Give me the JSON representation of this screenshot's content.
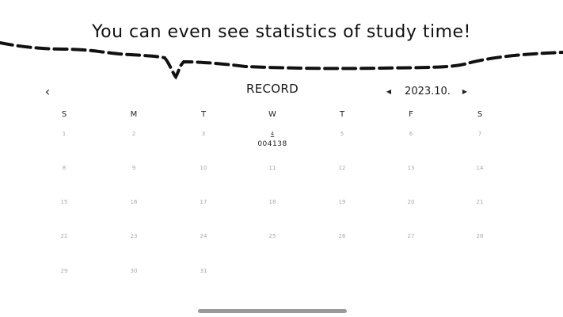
{
  "caption": "You can even see statistics of study time!",
  "header": {
    "back_icon": "chevron-left-icon",
    "title": "RECORD",
    "month": "2023.10.",
    "prev_icon": "triangle-left-icon",
    "next_icon": "triangle-right-icon"
  },
  "weekdays": [
    "S",
    "M",
    "T",
    "W",
    "T",
    "F",
    "S"
  ],
  "days": [
    {
      "day": "1",
      "record": ""
    },
    {
      "day": "2",
      "record": ""
    },
    {
      "day": "3",
      "record": ""
    },
    {
      "day": "4",
      "record": "004138"
    },
    {
      "day": "5",
      "record": ""
    },
    {
      "day": "6",
      "record": ""
    },
    {
      "day": "7",
      "record": ""
    },
    {
      "day": "8",
      "record": ""
    },
    {
      "day": "9",
      "record": ""
    },
    {
      "day": "10",
      "record": ""
    },
    {
      "day": "11",
      "record": ""
    },
    {
      "day": "12",
      "record": ""
    },
    {
      "day": "13",
      "record": ""
    },
    {
      "day": "14",
      "record": ""
    },
    {
      "day": "15",
      "record": ""
    },
    {
      "day": "16",
      "record": ""
    },
    {
      "day": "17",
      "record": ""
    },
    {
      "day": "18",
      "record": ""
    },
    {
      "day": "19",
      "record": ""
    },
    {
      "day": "20",
      "record": ""
    },
    {
      "day": "21",
      "record": ""
    },
    {
      "day": "22",
      "record": ""
    },
    {
      "day": "23",
      "record": ""
    },
    {
      "day": "24",
      "record": ""
    },
    {
      "day": "25",
      "record": ""
    },
    {
      "day": "26",
      "record": ""
    },
    {
      "day": "27",
      "record": ""
    },
    {
      "day": "28",
      "record": ""
    },
    {
      "day": "29",
      "record": ""
    },
    {
      "day": "30",
      "record": ""
    },
    {
      "day": "31",
      "record": ""
    }
  ]
}
